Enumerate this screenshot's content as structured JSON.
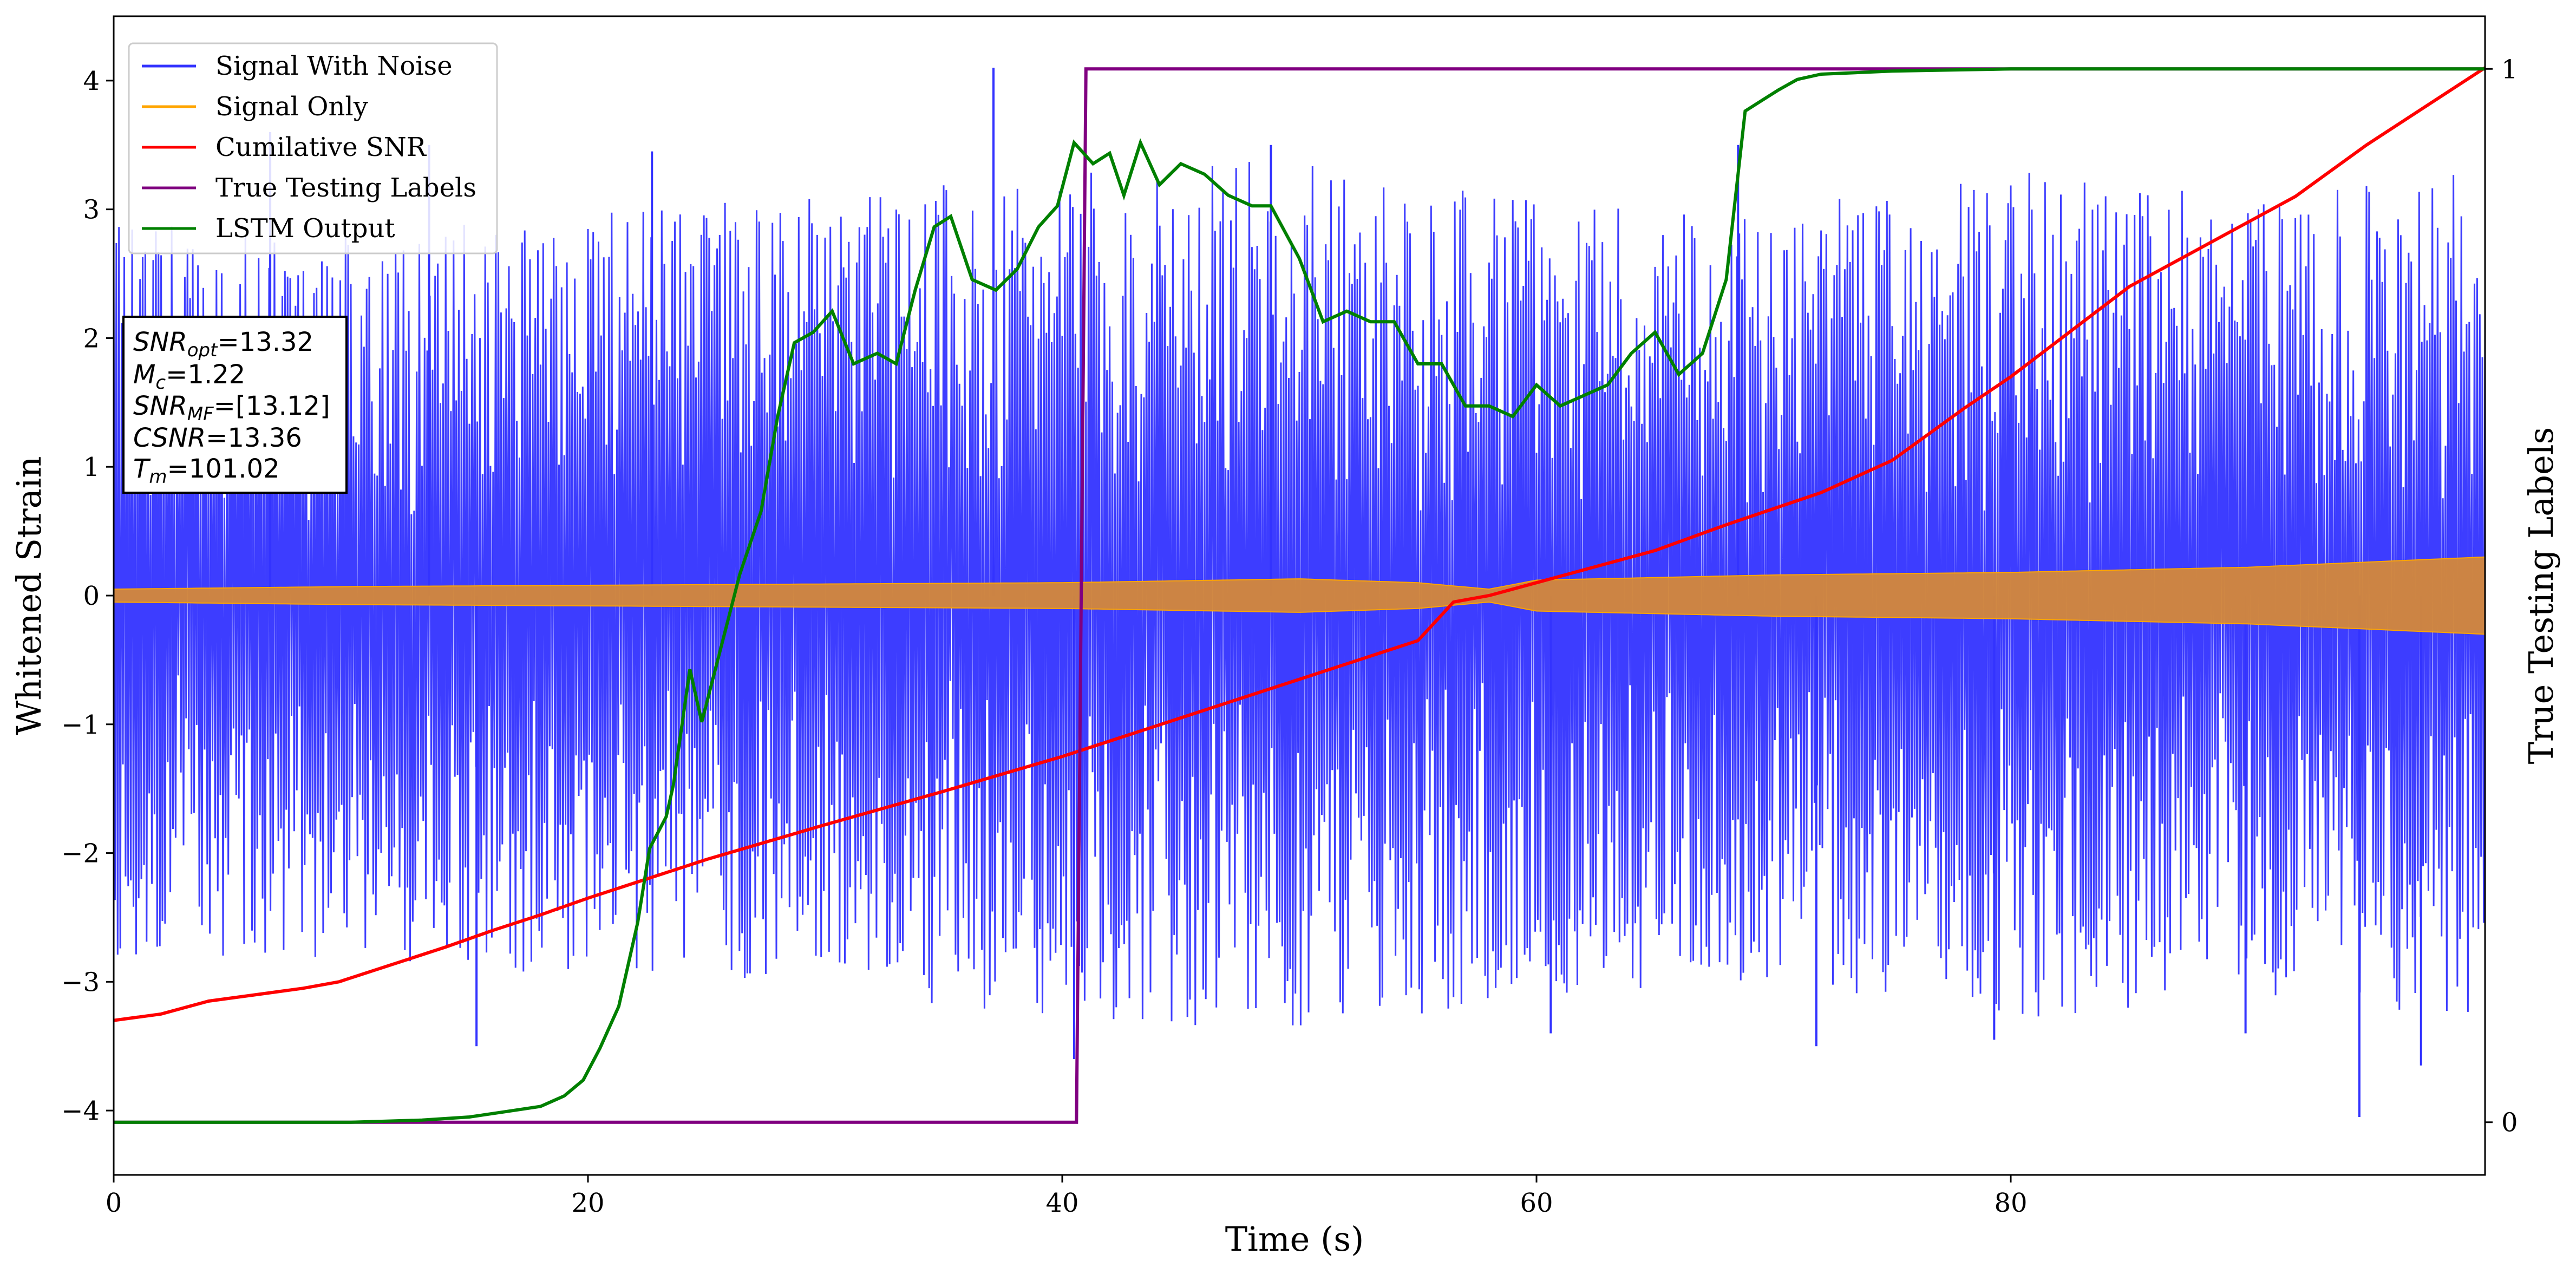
{
  "chart_data": {
    "type": "line",
    "xlabel": "Time (s)",
    "ylabel_left": "Whitened Strain",
    "ylabel_right": "True Testing Labels",
    "xlim": [
      0,
      100
    ],
    "ylim_left": [
      -4.5,
      4.5
    ],
    "ylim_right": [
      -0.05,
      1.05
    ],
    "x_ticks": [
      0,
      20,
      40,
      60,
      80
    ],
    "y_ticks_left": [
      -4,
      -3,
      -2,
      -1,
      0,
      1,
      2,
      3,
      4
    ],
    "y_ticks_right": [
      0,
      1
    ],
    "grid": false,
    "legend_position": "top-left",
    "series": [
      {
        "name": "Signal With Noise",
        "color": "#3333ff",
        "axis": "left",
        "style": "noise-band",
        "points": [
          [
            0,
            2.9
          ],
          [
            10,
            2.8
          ],
          [
            20,
            3.0
          ],
          [
            30,
            3.1
          ],
          [
            40,
            3.3
          ],
          [
            50,
            3.4
          ],
          [
            60,
            3.1
          ],
          [
            70,
            3.0
          ],
          [
            80,
            3.3
          ],
          [
            90,
            3.1
          ],
          [
            100,
            3.3
          ]
        ],
        "peaks": [
          [
            6.6,
            3.6
          ],
          [
            13.3,
            3.5
          ],
          [
            22.7,
            3.45
          ],
          [
            37.1,
            4.1
          ],
          [
            48.8,
            3.5
          ],
          [
            68.5,
            3.5
          ],
          [
            15.3,
            -3.5
          ],
          [
            40.5,
            -3.6
          ],
          [
            60.6,
            -3.4
          ],
          [
            71.8,
            -3.5
          ],
          [
            79.3,
            -3.45
          ],
          [
            89.9,
            -3.4
          ],
          [
            94.7,
            -4.05
          ],
          [
            97.3,
            -3.65
          ]
        ]
      },
      {
        "name": "Signal Only",
        "color": "#ffa500",
        "axis": "left",
        "style": "envelope",
        "points": [
          [
            0,
            0.05
          ],
          [
            10,
            0.07
          ],
          [
            20,
            0.08
          ],
          [
            30,
            0.09
          ],
          [
            40,
            0.1
          ],
          [
            50,
            0.13
          ],
          [
            55,
            0.1
          ],
          [
            58,
            0.05
          ],
          [
            60,
            0.12
          ],
          [
            70,
            0.16
          ],
          [
            80,
            0.18
          ],
          [
            90,
            0.22
          ],
          [
            100,
            0.3
          ]
        ]
      },
      {
        "name": "Cumilative SNR",
        "color": "#ff0000",
        "axis": "left",
        "style": "line",
        "points": [
          [
            0,
            -3.3
          ],
          [
            2,
            -3.25
          ],
          [
            4,
            -3.15
          ],
          [
            6,
            -3.1
          ],
          [
            8,
            -3.05
          ],
          [
            9.5,
            -3.0
          ],
          [
            12,
            -2.85
          ],
          [
            14,
            -2.73
          ],
          [
            16,
            -2.6
          ],
          [
            18,
            -2.48
          ],
          [
            20,
            -2.35
          ],
          [
            25,
            -2.05
          ],
          [
            30,
            -1.78
          ],
          [
            35,
            -1.52
          ],
          [
            40,
            -1.25
          ],
          [
            45,
            -0.95
          ],
          [
            50,
            -0.65
          ],
          [
            55,
            -0.35
          ],
          [
            56.5,
            -0.05
          ],
          [
            58,
            0.0
          ],
          [
            60,
            0.1
          ],
          [
            62,
            0.2
          ],
          [
            65,
            0.35
          ],
          [
            68,
            0.55
          ],
          [
            72,
            0.8
          ],
          [
            75,
            1.05
          ],
          [
            78,
            1.45
          ],
          [
            80,
            1.7
          ],
          [
            85,
            2.4
          ],
          [
            88,
            2.7
          ],
          [
            92,
            3.1
          ],
          [
            95,
            3.5
          ],
          [
            100,
            4.1
          ]
        ]
      },
      {
        "name": "True Testing Labels",
        "color": "#800080",
        "axis": "right",
        "style": "line",
        "points": [
          [
            0,
            0
          ],
          [
            40.6,
            0
          ],
          [
            41.0,
            1
          ],
          [
            100,
            1
          ]
        ]
      },
      {
        "name": "LSTM Output",
        "color": "#008000",
        "axis": "right",
        "style": "line",
        "points": [
          [
            0,
            0
          ],
          [
            5,
            0
          ],
          [
            10,
            0
          ],
          [
            13,
            0.002
          ],
          [
            15,
            0.005
          ],
          [
            16.5,
            0.01
          ],
          [
            18,
            0.015
          ],
          [
            19,
            0.025
          ],
          [
            19.8,
            0.04
          ],
          [
            20.5,
            0.07
          ],
          [
            21.3,
            0.11
          ],
          [
            22.1,
            0.19
          ],
          [
            22.6,
            0.26
          ],
          [
            23.3,
            0.29
          ],
          [
            23.6,
            0.32
          ],
          [
            24.3,
            0.43
          ],
          [
            24.8,
            0.38
          ],
          [
            25.6,
            0.45
          ],
          [
            26.4,
            0.52
          ],
          [
            27.3,
            0.58
          ],
          [
            28,
            0.67
          ],
          [
            28.7,
            0.74
          ],
          [
            29.5,
            0.75
          ],
          [
            30.3,
            0.77
          ],
          [
            31.2,
            0.72
          ],
          [
            32.2,
            0.73
          ],
          [
            33.0,
            0.72
          ],
          [
            33.8,
            0.79
          ],
          [
            34.6,
            0.85
          ],
          [
            35.3,
            0.86
          ],
          [
            36.2,
            0.8
          ],
          [
            37.2,
            0.79
          ],
          [
            38.1,
            0.81
          ],
          [
            39.0,
            0.85
          ],
          [
            39.8,
            0.87
          ],
          [
            40.5,
            0.93
          ],
          [
            41.3,
            0.91
          ],
          [
            42.0,
            0.92
          ],
          [
            42.6,
            0.88
          ],
          [
            43.3,
            0.93
          ],
          [
            44.1,
            0.89
          ],
          [
            45,
            0.91
          ],
          [
            46,
            0.9
          ],
          [
            47,
            0.88
          ],
          [
            48,
            0.87
          ],
          [
            48.8,
            0.87
          ],
          [
            50,
            0.82
          ],
          [
            51,
            0.76
          ],
          [
            52,
            0.77
          ],
          [
            53,
            0.76
          ],
          [
            54,
            0.76
          ],
          [
            55,
            0.72
          ],
          [
            56,
            0.72
          ],
          [
            57,
            0.68
          ],
          [
            58,
            0.68
          ],
          [
            59,
            0.67
          ],
          [
            60,
            0.7
          ],
          [
            61,
            0.68
          ],
          [
            62,
            0.69
          ],
          [
            63,
            0.7
          ],
          [
            64,
            0.73
          ],
          [
            65,
            0.75
          ],
          [
            66,
            0.71
          ],
          [
            67,
            0.73
          ],
          [
            68,
            0.8
          ],
          [
            68.8,
            0.96
          ],
          [
            69.5,
            0.97
          ],
          [
            70.2,
            0.98
          ],
          [
            71,
            0.99
          ],
          [
            72,
            0.995
          ],
          [
            75,
            0.998
          ],
          [
            80,
            1.0
          ],
          [
            90,
            1.0
          ],
          [
            100,
            1.0
          ]
        ]
      }
    ],
    "annotation_box": {
      "lines": [
        {
          "label": "SNR",
          "subscript": "opt",
          "value": "=13.32"
        },
        {
          "label": "M",
          "subscript": "c",
          "value": "=1.22"
        },
        {
          "label": "SNR",
          "subscript": "MF",
          "value": "=[13.12]"
        },
        {
          "label": "CSNR",
          "subscript": "",
          "value": "=13.36"
        },
        {
          "label": "T",
          "subscript": "m",
          "value": "=101.02"
        }
      ]
    }
  }
}
